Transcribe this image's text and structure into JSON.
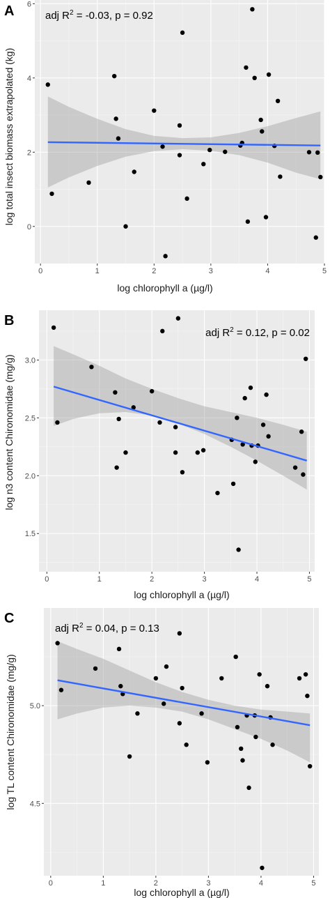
{
  "chart_data": [
    {
      "type": "scatter",
      "panel_label": "A",
      "xlabel": "log chlorophyll a (µg/l)",
      "ylabel": "log total insect biomass extrapolated (kg)",
      "annotation": {
        "pre": "adj R",
        "sup": "2",
        "post": " = -0.03, p = 0.92"
      },
      "xlim": [
        -0.1,
        5.0
      ],
      "ylim": [
        -1.0,
        6.1
      ],
      "xticks": [
        0,
        1,
        2,
        3,
        4,
        5
      ],
      "yticks": [
        0,
        2,
        4,
        6
      ],
      "x_tick_labels": [
        "0",
        "1",
        "2",
        "3",
        "4",
        "5"
      ],
      "y_tick_labels": [
        "0",
        "2",
        "4",
        "6"
      ],
      "grid": true,
      "trend": {
        "x": [
          0.13,
          4.93
        ],
        "y": [
          2.27,
          2.18
        ],
        "color": "#3366ff"
      },
      "confidence_band": {
        "x": [
          0.13,
          0.5,
          1.0,
          1.5,
          2.0,
          2.5,
          3.0,
          3.5,
          4.0,
          4.5,
          4.93
        ],
        "lower": [
          1.05,
          1.32,
          1.63,
          1.88,
          2.03,
          2.08,
          2.04,
          1.92,
          1.72,
          1.45,
          1.27
        ],
        "upper": [
          3.5,
          3.22,
          2.9,
          2.62,
          2.44,
          2.38,
          2.4,
          2.52,
          2.7,
          2.92,
          3.1
        ]
      },
      "points": {
        "x": [
          0.13,
          0.2,
          0.85,
          1.3,
          1.33,
          1.37,
          1.5,
          1.65,
          2.0,
          2.15,
          2.2,
          2.45,
          2.45,
          2.5,
          2.58,
          2.87,
          2.98,
          3.25,
          3.52,
          3.55,
          3.62,
          3.65,
          3.73,
          3.77,
          3.88,
          3.9,
          3.97,
          4.02,
          4.12,
          4.18,
          4.22,
          4.73,
          4.85,
          4.88,
          4.93
        ],
        "y": [
          3.82,
          0.88,
          1.18,
          4.05,
          2.9,
          2.37,
          0.0,
          1.47,
          3.12,
          2.15,
          -0.8,
          2.72,
          1.92,
          5.22,
          0.75,
          1.68,
          2.06,
          2.01,
          2.18,
          2.25,
          4.28,
          0.13,
          5.85,
          4.0,
          2.87,
          2.56,
          0.25,
          4.09,
          2.17,
          3.38,
          1.34,
          2.0,
          -0.3,
          1.99,
          1.33
        ]
      }
    },
    {
      "type": "scatter",
      "panel_label": "B",
      "xlabel": "log chlorophyll a (µg/l)",
      "ylabel": "log n3 content Chironomidae (mg/g)",
      "annotation": {
        "pre": "adj R",
        "sup": "2",
        "post": " = 0.12, p = 0.02"
      },
      "xlim": [
        -0.15,
        5.1
      ],
      "ylim": [
        1.17,
        3.43
      ],
      "xticks": [
        0,
        1,
        2,
        3,
        4,
        5
      ],
      "yticks": [
        1.5,
        2.0,
        2.5,
        3.0
      ],
      "x_tick_labels": [
        "0",
        "1",
        "2",
        "3",
        "4",
        "5"
      ],
      "y_tick_labels": [
        "1.5",
        "2.0",
        "2.5",
        "3.0"
      ],
      "grid": true,
      "trend": {
        "x": [
          0.13,
          4.95
        ],
        "y": [
          2.77,
          2.13
        ],
        "color": "#3366ff"
      },
      "confidence_band": {
        "x": [
          0.13,
          0.5,
          1.0,
          1.5,
          2.0,
          2.5,
          3.0,
          3.5,
          4.0,
          4.5,
          4.95
        ],
        "lower": [
          2.43,
          2.49,
          2.54,
          2.55,
          2.52,
          2.45,
          2.36,
          2.25,
          2.13,
          2.0,
          1.88
        ],
        "upper": [
          3.12,
          3.05,
          2.95,
          2.84,
          2.75,
          2.67,
          2.6,
          2.55,
          2.5,
          2.44,
          2.38
        ]
      },
      "points": {
        "x": [
          0.13,
          0.2,
          0.85,
          1.3,
          1.33,
          1.37,
          1.5,
          1.65,
          2.0,
          2.15,
          2.2,
          2.45,
          2.45,
          2.5,
          2.58,
          2.87,
          2.98,
          3.25,
          3.52,
          3.55,
          3.62,
          3.65,
          3.73,
          3.77,
          3.88,
          3.9,
          3.97,
          4.02,
          4.12,
          4.18,
          4.22,
          4.73,
          4.85,
          4.88,
          4.93
        ],
        "y": [
          3.28,
          2.46,
          2.94,
          2.72,
          2.07,
          2.49,
          2.2,
          2.59,
          2.73,
          2.46,
          3.25,
          2.42,
          2.2,
          3.36,
          2.03,
          2.2,
          2.22,
          1.85,
          2.31,
          1.93,
          2.5,
          1.36,
          2.27,
          2.67,
          2.76,
          2.26,
          2.12,
          2.26,
          2.44,
          2.7,
          2.34,
          2.07,
          2.38,
          2.01,
          3.01
        ]
      }
    },
    {
      "type": "scatter",
      "panel_label": "C",
      "xlabel": "log chlorophyll a (µg/l)",
      "ylabel": "log TL content Chironomidae (mg/g)",
      "annotation": {
        "pre": "adj R",
        "sup": "2",
        "post": " = 0.04, p = 0.13"
      },
      "xlim": [
        -0.13,
        5.1
      ],
      "ylim": [
        4.13,
        5.5
      ],
      "xticks": [
        0,
        1,
        2,
        3,
        4,
        5
      ],
      "yticks": [
        4.5,
        5.0
      ],
      "x_tick_labels": [
        "0",
        "1",
        "2",
        "3",
        "4",
        "5"
      ],
      "y_tick_labels": [
        "4.5",
        "5.0"
      ],
      "grid": true,
      "trend": {
        "x": [
          0.13,
          4.93
        ],
        "y": [
          5.13,
          4.9
        ],
        "color": "#3366ff"
      },
      "confidence_band": {
        "x": [
          0.13,
          0.5,
          1.0,
          1.5,
          2.0,
          2.5,
          3.0,
          3.5,
          4.0,
          4.5,
          4.93
        ],
        "lower": [
          4.93,
          4.96,
          4.99,
          5.0,
          4.99,
          4.97,
          4.93,
          4.88,
          4.83,
          4.77,
          4.71
        ],
        "upper": [
          5.33,
          5.29,
          5.24,
          5.18,
          5.12,
          5.07,
          5.03,
          5.0,
          4.98,
          4.97,
          4.96
        ]
      },
      "points": {
        "x": [
          0.13,
          0.2,
          0.85,
          1.3,
          1.33,
          1.37,
          1.5,
          1.65,
          2.0,
          2.15,
          2.2,
          2.45,
          2.45,
          2.5,
          2.58,
          2.87,
          2.98,
          3.25,
          3.52,
          3.55,
          3.62,
          3.65,
          3.73,
          3.77,
          3.88,
          3.9,
          3.97,
          4.02,
          4.12,
          4.18,
          4.22,
          4.73,
          4.85,
          4.88,
          4.93
        ],
        "y": [
          5.32,
          5.08,
          5.19,
          5.29,
          5.1,
          5.06,
          4.74,
          4.96,
          5.14,
          5.01,
          5.2,
          5.37,
          4.91,
          5.09,
          4.8,
          4.96,
          4.71,
          5.14,
          5.25,
          4.89,
          4.78,
          4.72,
          4.95,
          4.58,
          4.95,
          4.84,
          5.16,
          4.17,
          5.1,
          4.94,
          4.8,
          5.14,
          5.16,
          5.05,
          4.69
        ]
      }
    }
  ]
}
